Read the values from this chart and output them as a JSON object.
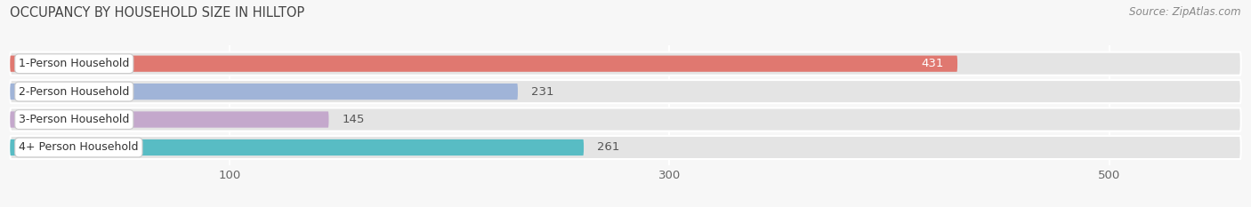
{
  "title": "OCCUPANCY BY HOUSEHOLD SIZE IN HILLTOP",
  "source": "Source: ZipAtlas.com",
  "categories": [
    "1-Person Household",
    "2-Person Household",
    "3-Person Household",
    "4+ Person Household"
  ],
  "values": [
    431,
    231,
    145,
    261
  ],
  "bar_colors": [
    "#e07870",
    "#a0b4d8",
    "#c4a8cc",
    "#58bcc4"
  ],
  "label_colors": [
    "white",
    "#666666",
    "#666666",
    "#666666"
  ],
  "xlim": [
    0,
    560
  ],
  "xticks": [
    100,
    300,
    500
  ],
  "background_color": "#f7f7f7",
  "bar_bg_color": "#e4e4e4",
  "title_fontsize": 10.5,
  "source_fontsize": 8.5,
  "tick_fontsize": 9.5,
  "bar_label_fontsize": 9.5,
  "category_fontsize": 9,
  "bar_height": 0.58,
  "bar_bg_extra": 0.25
}
